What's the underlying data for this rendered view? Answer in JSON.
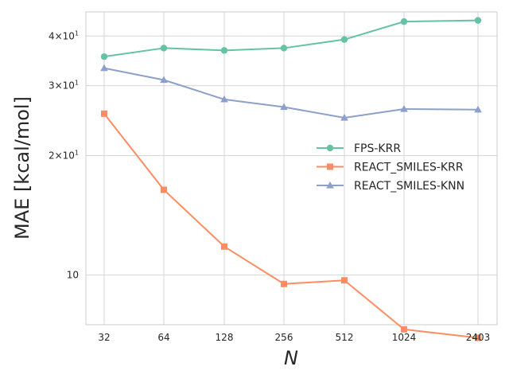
{
  "chart_data": {
    "type": "line",
    "xlabel": "N",
    "ylabel": "MAE [kcal/mol]",
    "x": [
      32,
      64,
      128,
      256,
      512,
      1024,
      2403
    ],
    "x_tick_labels": [
      "32",
      "64",
      "128",
      "256",
      "512",
      "1024",
      "2403"
    ],
    "x_scale": "categorical",
    "y_scale": "log",
    "ylim": [
      7.5,
      46
    ],
    "y_ticks": [
      {
        "value": 10,
        "label": "10"
      },
      {
        "value": 20,
        "label": "2×10¹"
      },
      {
        "value": 30,
        "label": "3×10¹"
      },
      {
        "value": 40,
        "label": "4×10¹"
      }
    ],
    "grid": true,
    "legend_position": "center-right",
    "series": [
      {
        "name": "FPS-KRR",
        "color": "#66c2a5",
        "marker": "circle",
        "values": [
          35.5,
          37.3,
          36.8,
          37.3,
          39.2,
          43.5,
          43.8
        ]
      },
      {
        "name": "REACT_SMILES-KRR",
        "color": "#fc8d62",
        "marker": "square",
        "values": [
          25.5,
          16.4,
          11.8,
          9.5,
          9.7,
          7.3,
          6.95
        ]
      },
      {
        "name": "REACT_SMILES-KNN",
        "color": "#8da0cb",
        "marker": "triangle",
        "values": [
          33.2,
          31.0,
          27.7,
          26.5,
          24.9,
          26.2,
          26.1
        ]
      }
    ]
  }
}
